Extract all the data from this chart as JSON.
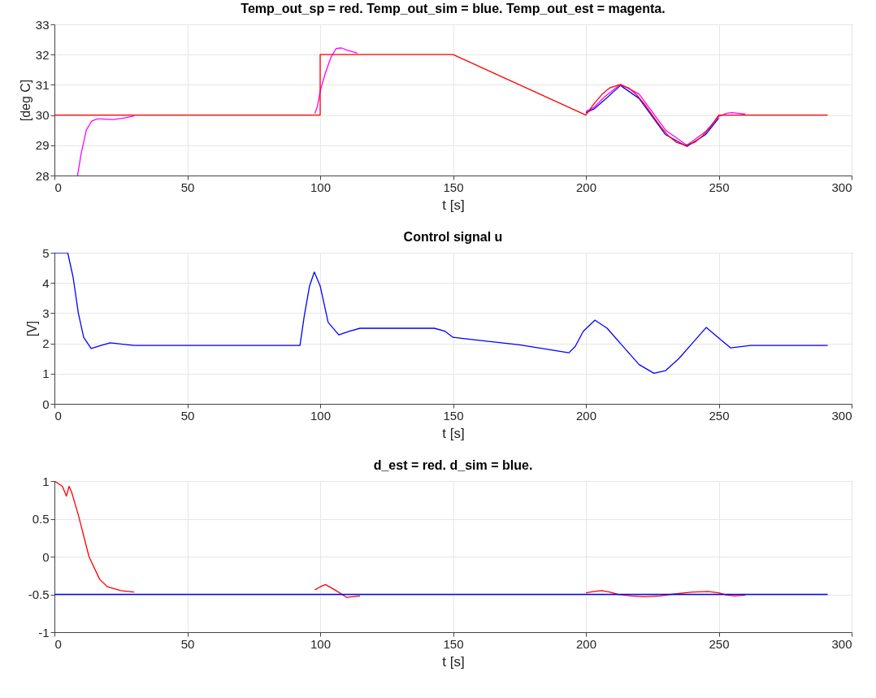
{
  "chart_data": [
    {
      "type": "line",
      "title": "Temp_out_sp = red. Temp_out_sim = blue. Temp_out_est = magenta.",
      "xlabel": "t [s]",
      "ylabel": "[deg C]",
      "xlim": [
        0,
        300
      ],
      "xticks": [
        0,
        50,
        100,
        150,
        200,
        250,
        300
      ],
      "ylim": [
        28,
        33
      ],
      "yticks": [
        28,
        29,
        30,
        31,
        32,
        33
      ],
      "grid": true,
      "line_style": "solid",
      "series": [
        {
          "color": "#0000ff",
          "x": [
            200,
            203,
            207,
            213,
            220,
            230,
            238,
            245,
            250
          ],
          "values": [
            30.08,
            30.2,
            30.5,
            30.98,
            30.55,
            29.35,
            28.96,
            29.35,
            29.9
          ]
        },
        {
          "color": "#ff00ff",
          "x": [
            8.7,
            10,
            12,
            14,
            16,
            18,
            22,
            26,
            30,
            40,
            98,
            99,
            100,
            102,
            104,
            106,
            108,
            110,
            114,
            120,
            200,
            203,
            207,
            213,
            220,
            230,
            238,
            245,
            250,
            253,
            255,
            260
          ],
          "values": [
            28,
            28.7,
            29.5,
            29.8,
            29.87,
            29.87,
            29.85,
            29.9,
            29.97,
            null,
            30.05,
            30.3,
            30.8,
            31.4,
            31.9,
            32.2,
            32.22,
            32.15,
            32.05,
            null,
            30.12,
            30.25,
            30.6,
            31.02,
            30.7,
            29.5,
            29,
            29.45,
            29.95,
            30.06,
            30.08,
            30.03
          ]
        },
        {
          "color": "#ff0000",
          "x": [
            0,
            100,
            100,
            150,
            200,
            203,
            206,
            209,
            212.5,
            216,
            219,
            222,
            225,
            228,
            231,
            234,
            237.5,
            241,
            244,
            247,
            250,
            291
          ],
          "values": [
            30,
            30,
            32,
            32,
            30,
            30.37,
            30.68,
            30.9,
            31,
            30.9,
            30.68,
            30.37,
            30,
            29.63,
            29.32,
            29.1,
            29,
            29.1,
            29.32,
            29.63,
            30,
            30
          ]
        }
      ]
    },
    {
      "type": "line",
      "title": "Control signal u",
      "xlabel": "t [s]",
      "ylabel": "[V]",
      "xlim": [
        0,
        300
      ],
      "xticks": [
        0,
        50,
        100,
        150,
        200,
        250,
        300
      ],
      "ylim": [
        0,
        5
      ],
      "yticks": [
        0,
        1,
        2,
        3,
        4,
        5
      ],
      "grid": true,
      "line_style": "solid",
      "series": [
        {
          "color": "#0000ff",
          "x": [
            0,
            5,
            7,
            9,
            11,
            13.8,
            17,
            21,
            25,
            30,
            92.4,
            94,
            96,
            97.8,
            100,
            103,
            107,
            111,
            115,
            143,
            147,
            150,
            160,
            175,
            193.6,
            196,
            199,
            203.4,
            208,
            214,
            220,
            225.6,
            230,
            235,
            240,
            245.3,
            249,
            254.5,
            262,
            291
          ],
          "values": [
            5,
            5,
            4.2,
            3,
            2.2,
            1.83,
            1.92,
            2.02,
            1.98,
            1.93,
            1.93,
            2.9,
            3.9,
            4.36,
            3.9,
            2.7,
            2.28,
            2.4,
            2.5,
            2.5,
            2.4,
            2.2,
            2.1,
            1.95,
            1.69,
            1.9,
            2.4,
            2.77,
            2.5,
            1.9,
            1.3,
            1.01,
            1.1,
            1.5,
            2,
            2.53,
            2.25,
            1.85,
            1.93,
            1.93
          ]
        }
      ]
    },
    {
      "type": "line",
      "title": "d_est = red. d_sim = blue.",
      "xlabel": "t [s]",
      "xlim": [
        0,
        300
      ],
      "xticks": [
        0,
        50,
        100,
        150,
        200,
        250,
        300
      ],
      "ylim": [
        -1,
        1
      ],
      "yticks": [
        -1,
        -0.5,
        0,
        0.5,
        1
      ],
      "grid": true,
      "line_style": "solid",
      "series": [
        {
          "color": "#ff0000",
          "x": [
            0,
            3,
            4.5,
            5.5,
            6.5,
            9,
            13,
            17,
            20,
            25,
            30,
            40,
            98,
            100,
            102,
            106,
            110,
            115,
            118,
            200,
            203,
            206,
            209,
            212,
            217,
            222,
            228,
            232,
            240,
            246,
            250,
            253,
            256,
            260
          ],
          "values": [
            1,
            0.93,
            0.8,
            0.93,
            0.85,
            0.55,
            0,
            -0.3,
            -0.4,
            -0.45,
            -0.47,
            null,
            -0.44,
            -0.4,
            -0.37,
            -0.45,
            -0.54,
            -0.52,
            null,
            -0.48,
            -0.46,
            -0.45,
            -0.47,
            -0.5,
            -0.52,
            -0.53,
            -0.52,
            -0.5,
            -0.47,
            -0.46,
            -0.48,
            -0.51,
            -0.52,
            -0.51
          ]
        },
        {
          "color": "#0000ff",
          "x": [
            0,
            291
          ],
          "values": [
            -0.5,
            -0.5
          ]
        }
      ]
    }
  ]
}
